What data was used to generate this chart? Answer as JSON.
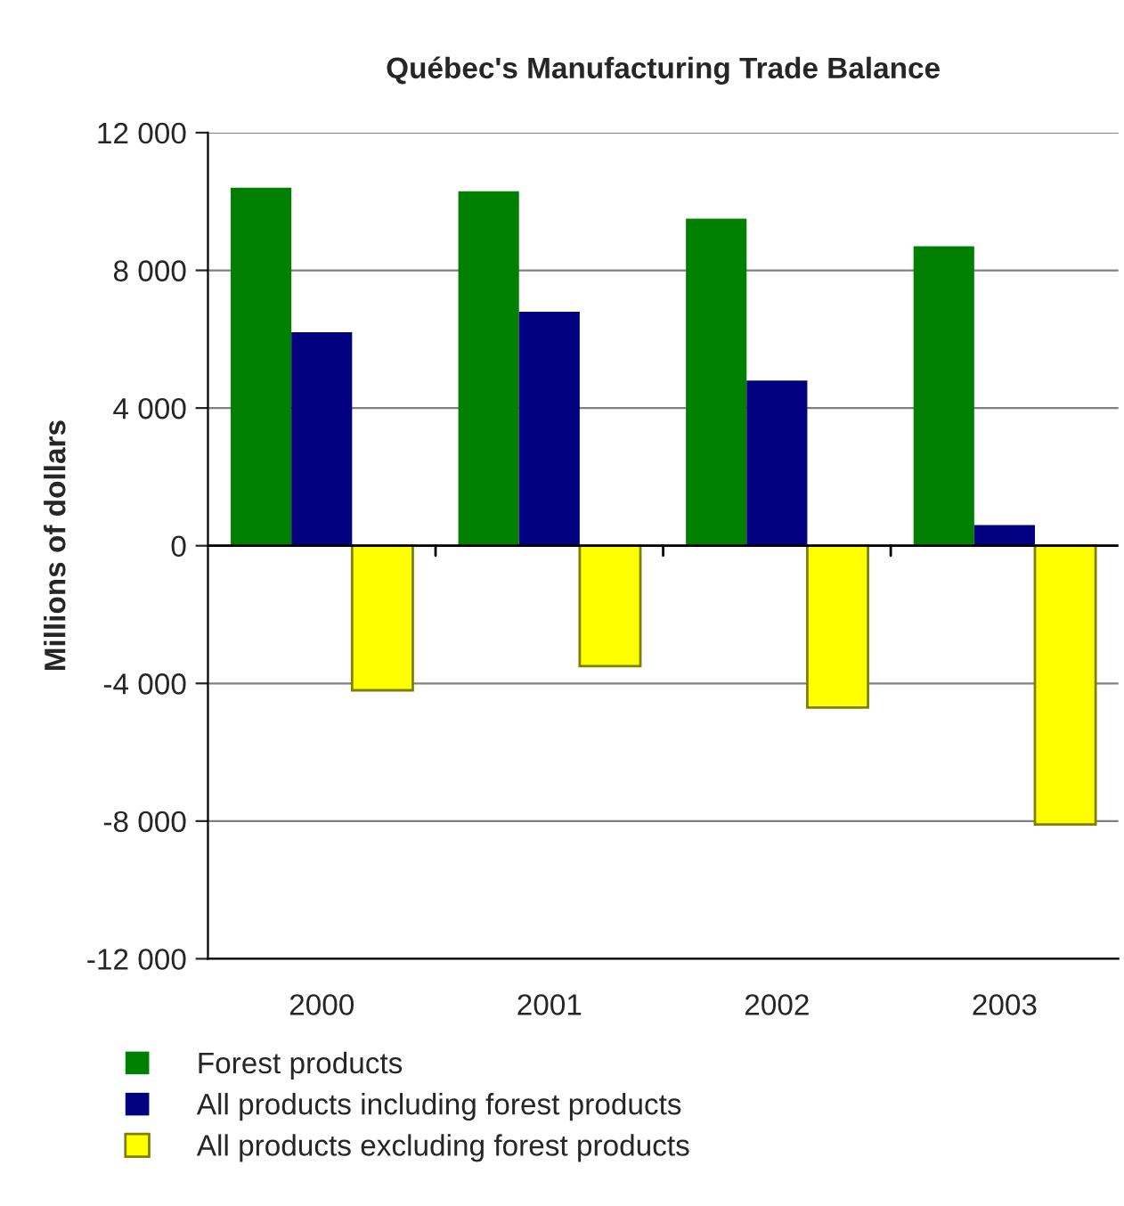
{
  "chart_data": {
    "type": "bar",
    "title": "Québec's Manufacturing Trade Balance",
    "ylabel": "Millions of dollars",
    "categories": [
      "2000",
      "2001",
      "2002",
      "2003"
    ],
    "series": [
      {
        "name": "Forest products",
        "color": "#008000",
        "values": [
          10400,
          10300,
          9500,
          8700
        ]
      },
      {
        "name": "All products including forest products",
        "color": "#000080",
        "values": [
          6200,
          6800,
          4800,
          600
        ]
      },
      {
        "name": "All products excluding forest products",
        "color": "#ffff00",
        "values": [
          -4200,
          -3500,
          -4700,
          -8100
        ]
      }
    ],
    "ylim": [
      -12000,
      12000
    ],
    "yticks": [
      {
        "value": -12000,
        "label": "-12 000"
      },
      {
        "value": -8000,
        "label": "-8 000"
      },
      {
        "value": -4000,
        "label": "-4 000"
      },
      0,
      {
        "value": 4000,
        "label": "4 000"
      },
      {
        "value": 8000,
        "label": "8 000"
      },
      {
        "value": 12000,
        "label": "12 000"
      }
    ],
    "grid": "y",
    "legend": "bottom"
  }
}
